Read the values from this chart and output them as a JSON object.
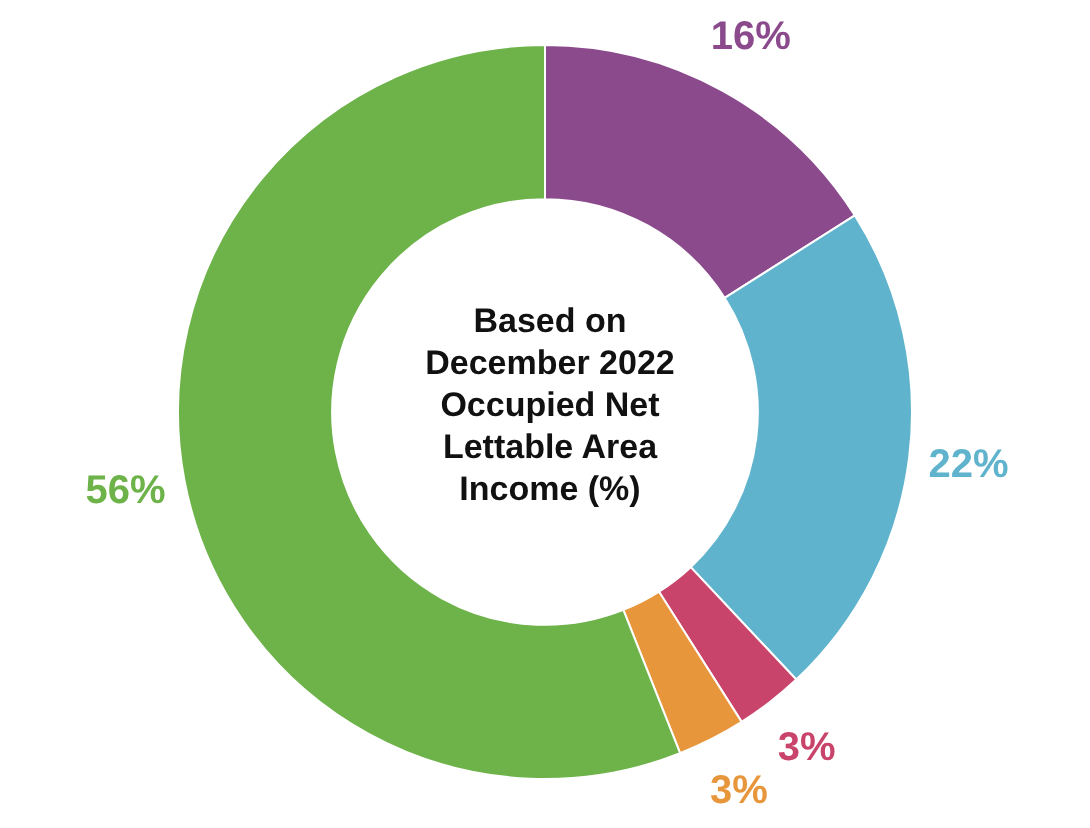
{
  "chart_data": {
    "type": "donut",
    "title": "Based on December 2022 Occupied Net Lettable Area Income (%)",
    "categories": [
      null,
      null,
      null,
      null,
      null
    ],
    "values": [
      16,
      22,
      3,
      3,
      56
    ],
    "colors": [
      "#8b4a8c",
      "#5fb3cc",
      "#c9446b",
      "#e8963c",
      "#6db34a"
    ],
    "value_labels": [
      "16%",
      "22%",
      "3%",
      "3%",
      "56%"
    ],
    "legend": false
  }
}
